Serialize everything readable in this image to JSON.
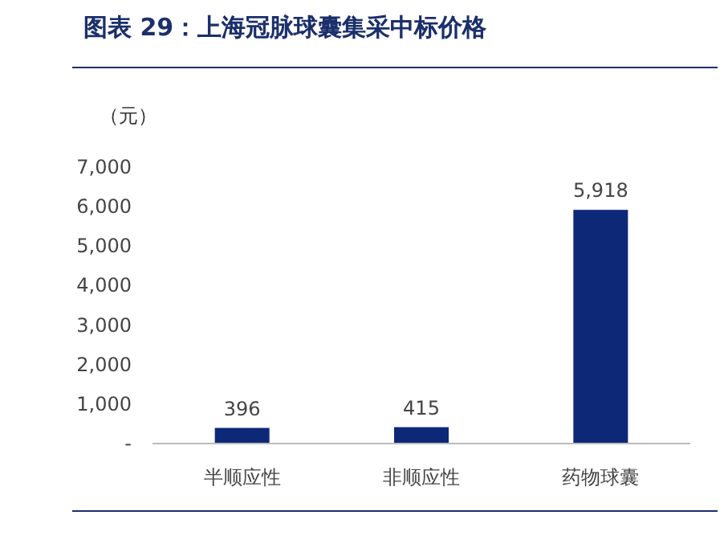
{
  "chart_data": {
    "type": "bar",
    "title": "图表 29：上海冠脉球囊集采中标价格",
    "ylabel": "（元）",
    "categories": [
      "半顺应性",
      "非顺应性",
      "药物球囊"
    ],
    "values": [
      396,
      415,
      5918
    ],
    "color": "#0d2877",
    "ylim": [
      0,
      7000
    ],
    "yticks": [
      {
        "value": 0,
        "label": "-"
      },
      {
        "value": 1000,
        "label": "1,000"
      },
      {
        "value": 2000,
        "label": "2,000"
      },
      {
        "value": 3000,
        "label": "3,000"
      },
      {
        "value": 4000,
        "label": "4,000"
      },
      {
        "value": 5000,
        "label": "5,000"
      },
      {
        "value": 6000,
        "label": "6,000"
      },
      {
        "value": 7000,
        "label": "7,000"
      }
    ],
    "value_labels": [
      "396",
      "415",
      "5,918"
    ]
  }
}
